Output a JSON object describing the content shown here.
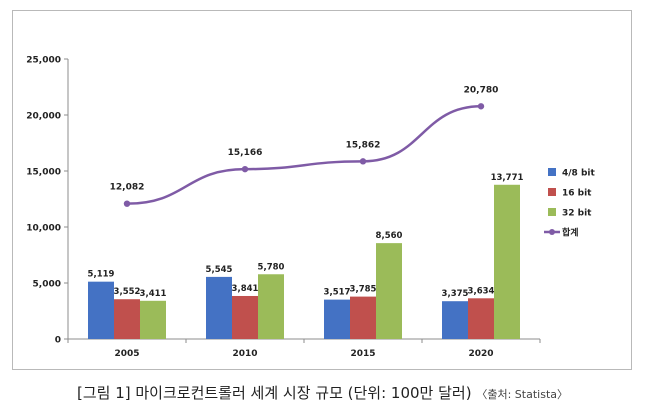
{
  "chart_data": {
    "type": "bar",
    "categories": [
      "2005",
      "2010",
      "2015",
      "2020"
    ],
    "series": [
      {
        "name": "4/8 bit",
        "type": "bar",
        "color": "#4472c4",
        "values": [
          5119,
          5545,
          3517,
          3375
        ],
        "labels": [
          "5,119",
          "5,545",
          "3,517",
          "3,375"
        ]
      },
      {
        "name": "16 bit",
        "type": "bar",
        "color": "#c0504d",
        "values": [
          3552,
          3841,
          3785,
          3634
        ],
        "labels": [
          "3,552",
          "3,841",
          "3,785",
          "3,634"
        ]
      },
      {
        "name": "32 bit",
        "type": "bar",
        "color": "#9bbb59",
        "values": [
          3411,
          5780,
          8560,
          13771
        ],
        "labels": [
          "3,411",
          "5,780",
          "8,560",
          "13,771"
        ]
      },
      {
        "name": "합계",
        "type": "line",
        "color": "#7f5ba6",
        "values": [
          12082,
          15166,
          15862,
          20780
        ],
        "labels": [
          "12,082",
          "15,166",
          "15,862",
          "20,780"
        ]
      }
    ],
    "ylim": [
      0,
      25000
    ],
    "yticks": [
      "0",
      "5,000",
      "10,000",
      "15,000",
      "20,000",
      "25,000"
    ],
    "grid": false,
    "legend_position": "right"
  },
  "caption": {
    "text": "[그림 1] 마이크로컨트롤러 세계 시장 규모 (단위: 100만 달러)",
    "source": "〈출처: Statista〉"
  }
}
